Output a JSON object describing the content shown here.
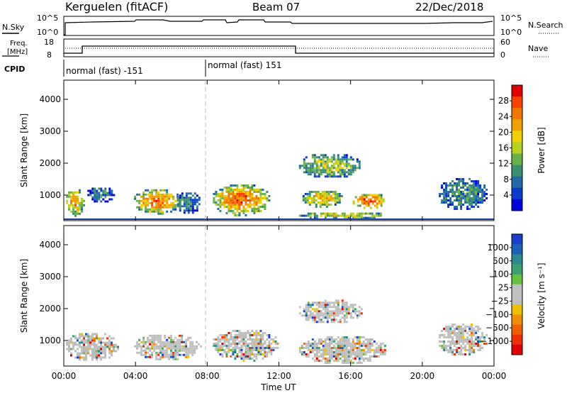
{
  "header": {
    "station": "Kerguelen (fitACF)",
    "beam": "Beam 07",
    "date": "22/Dec/2018"
  },
  "panels": {
    "noise": {
      "left_label": "N.Sky",
      "right_label": "N.Search",
      "left_ticks": [
        "10^5",
        "10^0"
      ],
      "right_ticks": [
        "10^5",
        "10^0"
      ]
    },
    "freq": {
      "left_label_1": "Freq.",
      "left_label_2": "[MHz]",
      "left_ticks": [
        "18",
        "8"
      ],
      "right_label": "Nave",
      "right_ticks": [
        "60",
        "0"
      ]
    },
    "cpid": {
      "label": "CPID",
      "segments": [
        {
          "label": "normal (fast) -151",
          "start_h": 0
        },
        {
          "label": "normal (fast) 151",
          "start_h": 8
        }
      ]
    }
  },
  "x_axis": {
    "title": "Time UT",
    "ticks": [
      "00:00",
      "04:00",
      "08:00",
      "12:00",
      "16:00",
      "20:00",
      "00:00"
    ],
    "range_h": [
      0,
      24
    ]
  },
  "y_axis": {
    "title": "Slant Range [km]",
    "ticks": [
      "1000",
      "2000",
      "3000",
      "4000"
    ],
    "range_km": [
      200,
      4600
    ]
  },
  "colorbars": {
    "power": {
      "title": "Power [dB]",
      "labels": [
        "28",
        "24",
        "20",
        "16",
        "12",
        "8",
        "4"
      ],
      "colors": [
        "#e00000",
        "#ff4000",
        "#f07800",
        "#f0a000",
        "#f0d000",
        "#b8d020",
        "#68b048",
        "#3a8e72",
        "#226aa8",
        "#0a3cd0",
        "#0000e0"
      ]
    },
    "velocity": {
      "title": "Velocity [m s⁻¹]",
      "labels": [
        "1000",
        "500",
        "100",
        "25",
        "−25",
        "−100",
        "−500",
        "−1000"
      ],
      "colors": [
        "#1a3ed0",
        "#1a60b8",
        "#2a8a90",
        "#3aa070",
        "#66c040",
        "#c0c0c0",
        "#c0c0c0",
        "#f0c000",
        "#f09000",
        "#f06000",
        "#f03000",
        "#e00000"
      ]
    }
  },
  "chart_data": {
    "type": "heatmap",
    "x_unit": "hours UT",
    "y_unit": "km",
    "power_blobs": [
      {
        "t0": 0.0,
        "t1": 1.1,
        "r0": 380,
        "r1": 1250,
        "level": 0.75
      },
      {
        "t0": 1.2,
        "t1": 2.8,
        "r0": 800,
        "r1": 1300,
        "level": 0.25
      },
      {
        "t0": 3.8,
        "t1": 6.5,
        "r0": 420,
        "r1": 1250,
        "level": 0.8
      },
      {
        "t0": 6.2,
        "t1": 7.6,
        "r0": 450,
        "r1": 1150,
        "level": 0.3
      },
      {
        "t0": 8.2,
        "t1": 11.5,
        "r0": 380,
        "r1": 1400,
        "level": 0.85
      },
      {
        "t0": 13.0,
        "t1": 16.6,
        "r0": 1550,
        "r1": 2350,
        "level": 0.5
      },
      {
        "t0": 13.2,
        "t1": 15.5,
        "r0": 650,
        "r1": 1200,
        "level": 0.7
      },
      {
        "t0": 16.0,
        "t1": 18.0,
        "r0": 600,
        "r1": 1100,
        "level": 0.9
      },
      {
        "t0": 13.0,
        "t1": 18.0,
        "r0": 280,
        "r1": 520,
        "level": 0.55
      },
      {
        "t0": 20.8,
        "t1": 23.6,
        "r0": 550,
        "r1": 1600,
        "level": 0.3
      }
    ],
    "velocity_blobs": [
      {
        "t0": 0.0,
        "t1": 3.0,
        "r0": 380,
        "r1": 1300,
        "level": 0.5
      },
      {
        "t0": 3.8,
        "t1": 7.6,
        "r0": 420,
        "r1": 1250,
        "level": 0.5
      },
      {
        "t0": 8.2,
        "t1": 12.0,
        "r0": 380,
        "r1": 1400,
        "level": 0.5
      },
      {
        "t0": 13.0,
        "t1": 16.6,
        "r0": 1550,
        "r1": 2350,
        "level": 0.5
      },
      {
        "t0": 13.0,
        "t1": 18.0,
        "r0": 280,
        "r1": 1200,
        "level": 0.5
      },
      {
        "t0": 20.8,
        "t1": 23.6,
        "r0": 550,
        "r1": 1600,
        "level": 0.6
      }
    ]
  }
}
